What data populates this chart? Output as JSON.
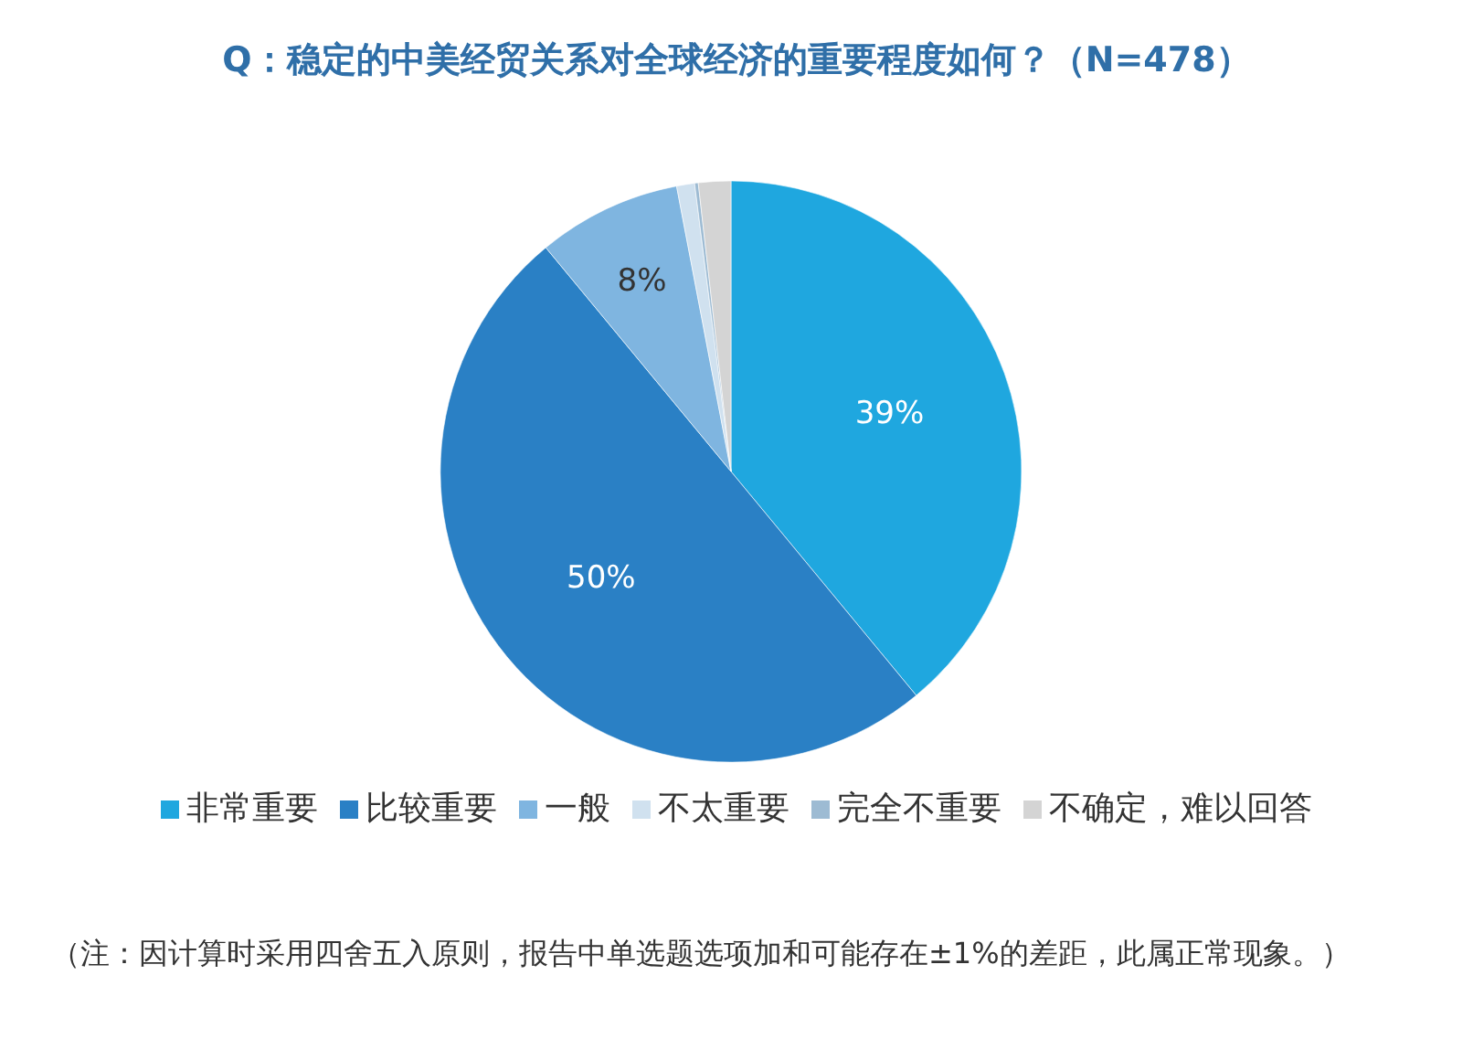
{
  "chart_data": {
    "type": "pie",
    "title": "Q：稳定的中美经贸关系对全球经济的重要程度如何？（N=478）",
    "categories": [
      "非常重要",
      "比较重要",
      "一般",
      "不太重要",
      "完全不重要",
      "不确定，难以回答"
    ],
    "values": [
      39,
      50,
      8,
      1,
      0.2,
      1.8
    ],
    "colors": [
      "#1fa7df",
      "#2a80c5",
      "#7fb5e0",
      "#d0e1ef",
      "#9dbbd3",
      "#d4d4d4"
    ],
    "value_labels": [
      "39%",
      "50%",
      "8%",
      null,
      null,
      null
    ],
    "legend": "bottom",
    "annotations": [
      "（注：因计算时采用四舍五入原则，报告中单选题选项加和可能存在±1%的差距，此属正常现象。）"
    ]
  }
}
